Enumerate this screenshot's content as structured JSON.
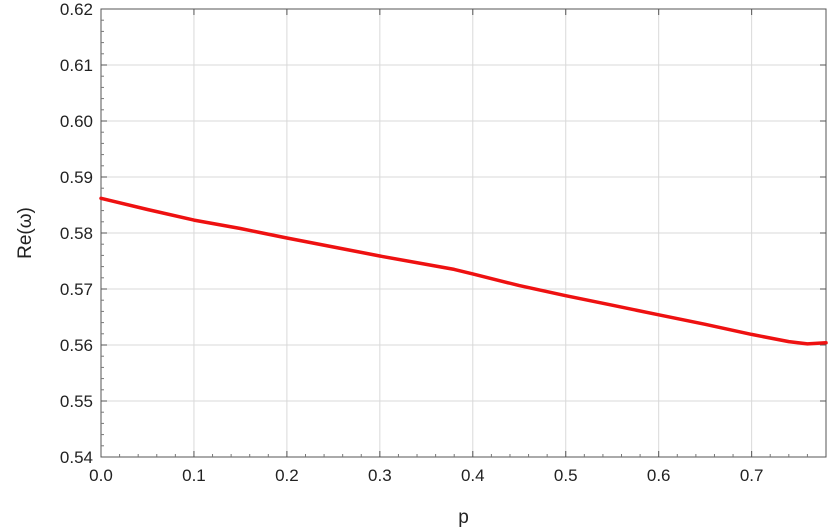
{
  "chart_data": {
    "type": "line",
    "title": "",
    "xlabel": "p",
    "ylabel": "Re(ω)",
    "xlim": [
      0.0,
      0.78
    ],
    "ylim": [
      0.54,
      0.62
    ],
    "x_ticks": [
      0.0,
      0.1,
      0.2,
      0.3,
      0.4,
      0.5,
      0.6,
      0.7
    ],
    "x_tick_labels": [
      "0.0",
      "0.1",
      "0.2",
      "0.3",
      "0.4",
      "0.5",
      "0.6",
      "0.7"
    ],
    "y_ticks": [
      0.54,
      0.55,
      0.56,
      0.57,
      0.58,
      0.59,
      0.6,
      0.61,
      0.62
    ],
    "y_tick_labels": [
      "0.54",
      "0.55",
      "0.56",
      "0.57",
      "0.58",
      "0.59",
      "0.60",
      "0.61",
      "0.62"
    ],
    "grid": true,
    "series": [
      {
        "color": "#ee1111",
        "x": [
          0.0,
          0.05,
          0.1,
          0.15,
          0.2,
          0.25,
          0.3,
          0.35,
          0.38,
          0.4,
          0.45,
          0.5,
          0.55,
          0.6,
          0.65,
          0.7,
          0.74,
          0.76,
          0.78
        ],
        "y": [
          0.5862,
          0.5842,
          0.5823,
          0.5808,
          0.5791,
          0.5775,
          0.5759,
          0.5744,
          0.5735,
          0.5727,
          0.5706,
          0.5688,
          0.5671,
          0.5654,
          0.5637,
          0.5619,
          0.5606,
          0.5602,
          0.5604
        ]
      }
    ]
  }
}
